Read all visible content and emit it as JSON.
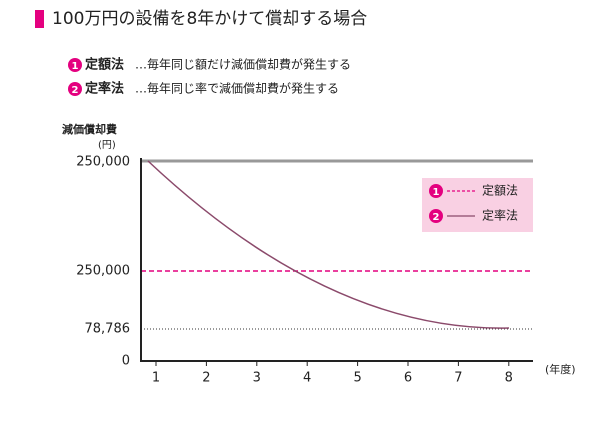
{
  "title": "100万円の設備を8年かけて償却する場合",
  "methods": [
    {
      "number": "1",
      "name": "定額法",
      "description": "…毎年同じ額だけ減価償却費が発生する"
    },
    {
      "number": "2",
      "name": "定率法",
      "description": "…毎年同じ率で減価償却費が発生する"
    }
  ],
  "figure": {
    "y_axis_title": "減価償却費",
    "y_axis_unit": "(円)",
    "y_labels": [
      "250,000",
      "250,000",
      "78,786",
      "0"
    ],
    "x_labels": [
      "1",
      "2",
      "3",
      "4",
      "5",
      "6",
      "7",
      "8"
    ],
    "x_axis_unit": "(年度)",
    "legend": [
      {
        "number": "1",
        "name": "定額法"
      },
      {
        "number": "2",
        "name": "定率法"
      }
    ]
  }
}
